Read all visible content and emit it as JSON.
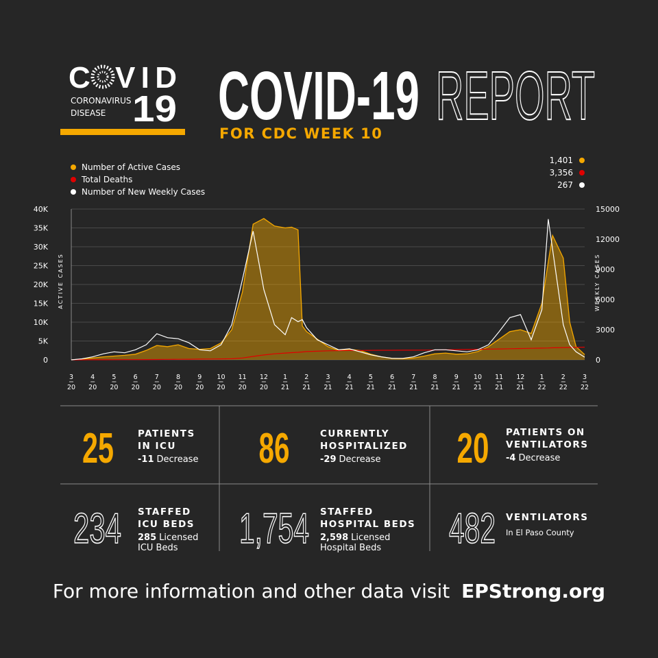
{
  "logo": {
    "text_before": "C",
    "text_after": "VID",
    "subtitle": [
      "CORONAVIRUS",
      "DISEASE"
    ],
    "number": "19"
  },
  "header": {
    "title": "COVID-19",
    "title_outline": "REPORT",
    "subtitle": "FOR CDC WEEK 10"
  },
  "chart_data": {
    "type": "area",
    "y_label": "ACTIVE CASES",
    "y2_label": "WEEKLY CASES",
    "xlim": [
      0,
      24
    ],
    "xticks": [
      {
        "value": 0,
        "label": "3",
        "sublabel": "20"
      },
      {
        "value": 1,
        "label": "4",
        "sublabel": "20"
      },
      {
        "value": 2,
        "label": "5",
        "sublabel": "20"
      },
      {
        "value": 3,
        "label": "6",
        "sublabel": "20"
      },
      {
        "value": 4,
        "label": "7",
        "sublabel": "20"
      },
      {
        "value": 5,
        "label": "8",
        "sublabel": "20"
      },
      {
        "value": 6,
        "label": "9",
        "sublabel": "20"
      },
      {
        "value": 7,
        "label": "10",
        "sublabel": "20"
      },
      {
        "value": 8,
        "label": "11",
        "sublabel": "20"
      },
      {
        "value": 9,
        "label": "12",
        "sublabel": "20"
      },
      {
        "value": 10,
        "label": "1",
        "sublabel": "21"
      },
      {
        "value": 11,
        "label": "2",
        "sublabel": "21"
      },
      {
        "value": 12,
        "label": "3",
        "sublabel": "21"
      },
      {
        "value": 13,
        "label": "4",
        "sublabel": "21"
      },
      {
        "value": 14,
        "label": "5",
        "sublabel": "21"
      },
      {
        "value": 15,
        "label": "6",
        "sublabel": "21"
      },
      {
        "value": 16,
        "label": "7",
        "sublabel": "21"
      },
      {
        "value": 17,
        "label": "8",
        "sublabel": "21"
      },
      {
        "value": 18,
        "label": "9",
        "sublabel": "21"
      },
      {
        "value": 19,
        "label": "10",
        "sublabel": "21"
      },
      {
        "value": 20,
        "label": "11",
        "sublabel": "21"
      },
      {
        "value": 21,
        "label": "12",
        "sublabel": "21"
      },
      {
        "value": 22,
        "label": "1",
        "sublabel": "22"
      },
      {
        "value": 23,
        "label": "2",
        "sublabel": "22"
      },
      {
        "value": 24,
        "label": "3",
        "sublabel": "22"
      }
    ],
    "ylim": [
      0,
      40000
    ],
    "yticks": [
      0,
      {
        "value": 5000,
        "label": "5K"
      },
      {
        "value": 10000,
        "label": "10K"
      },
      {
        "value": 15000,
        "label": "15K"
      },
      {
        "value": 20000,
        "label": "20K"
      },
      {
        "value": 25000,
        "label": "25K"
      },
      {
        "value": 30000,
        "label": "30K"
      },
      {
        "value": 35000,
        "label": "35K"
      },
      {
        "value": 40000,
        "label": "40K"
      }
    ],
    "y2lim": [
      0,
      15000
    ],
    "y2ticks": [
      0,
      3000,
      6000,
      9000,
      12000,
      15000
    ],
    "grid": true,
    "x": [
      0,
      0.5,
      1,
      1.5,
      2,
      2.5,
      3,
      3.5,
      4,
      4.5,
      5,
      5.5,
      6,
      6.5,
      7,
      7.5,
      8,
      8.5,
      9,
      9.5,
      10,
      10.3,
      10.6,
      10.8,
      11,
      11.5,
      12,
      12.5,
      13,
      13.5,
      14,
      14.5,
      15,
      15.5,
      16,
      16.5,
      17,
      17.5,
      18,
      18.5,
      19,
      19.5,
      20,
      20.5,
      21,
      21.5,
      22,
      22.3,
      22.5,
      23,
      23.3,
      23.6,
      24
    ],
    "series": [
      {
        "name": "Number of Active Cases",
        "color": "#f5a800",
        "type": "area",
        "axis": "y",
        "values": [
          0,
          200,
          500,
          800,
          1000,
          1200,
          1500,
          2500,
          3800,
          3500,
          4000,
          3000,
          2800,
          3000,
          4500,
          8000,
          18000,
          36000,
          37500,
          35500,
          35000,
          35200,
          34500,
          9000,
          7500,
          5500,
          3500,
          2500,
          2800,
          2500,
          1500,
          800,
          400,
          300,
          500,
          1000,
          1600,
          1800,
          1500,
          1600,
          2200,
          3500,
          5500,
          7500,
          8000,
          7000,
          15000,
          26000,
          33000,
          27000,
          10000,
          3500,
          1401
        ],
        "latest": {
          "value": 1401,
          "label": "1,401"
        }
      },
      {
        "name": "Total Deaths",
        "color": "#e00000",
        "type": "line",
        "axis": "y",
        "values": [
          0,
          0,
          10,
          20,
          40,
          50,
          60,
          80,
          100,
          120,
          150,
          170,
          200,
          220,
          250,
          300,
          500,
          900,
          1300,
          1600,
          1800,
          1900,
          2000,
          2100,
          2200,
          2300,
          2400,
          2450,
          2480,
          2500,
          2520,
          2540,
          2550,
          2560,
          2570,
          2580,
          2600,
          2650,
          2700,
          2750,
          2800,
          2850,
          2900,
          2950,
          3000,
          3050,
          3100,
          3150,
          3200,
          3250,
          3300,
          3330,
          3356
        ],
        "latest": {
          "value": 3356,
          "label": "3,356"
        }
      },
      {
        "name": "Number of New Weekly Cases",
        "color": "#ffffff",
        "type": "line",
        "axis": "y2",
        "values": [
          0,
          100,
          300,
          600,
          800,
          700,
          1000,
          1500,
          2600,
          2200,
          2100,
          1700,
          1000,
          900,
          1500,
          3500,
          8000,
          12800,
          7000,
          3500,
          2500,
          4200,
          3800,
          4000,
          3200,
          2000,
          1500,
          1000,
          1100,
          800,
          500,
          300,
          150,
          150,
          300,
          700,
          1000,
          1000,
          900,
          800,
          1000,
          1500,
          2800,
          4200,
          4500,
          2000,
          5000,
          14000,
          11000,
          3500,
          1500,
          800,
          267
        ],
        "latest": {
          "value": 267,
          "label": "267"
        }
      }
    ]
  },
  "stats": [
    {
      "number": "25",
      "title": [
        "PATIENTS",
        "IN ICU"
      ],
      "note_bold": "-11",
      "note": [
        "Decrease"
      ]
    },
    {
      "number": "86",
      "title": [
        "CURRENTLY",
        "HOSPITALIZED"
      ],
      "note_bold": "-29",
      "note": [
        "Decrease"
      ]
    },
    {
      "number": "20",
      "title": [
        "PATIENTS ON",
        "VENTILATORS"
      ],
      "note_bold": "-4",
      "note": [
        "Decrease"
      ]
    },
    {
      "number": "234",
      "title": [
        "STAFFED",
        "ICU BEDS"
      ],
      "note_bold": "285",
      "note": [
        "Licensed",
        "ICU Beds"
      ]
    },
    {
      "number": "1,754",
      "title": [
        "STAFFED",
        "HOSPITAL BEDS"
      ],
      "note_bold": "2,598",
      "note": [
        "Licensed",
        "Hospital Beds"
      ]
    },
    {
      "number": "482",
      "title": [
        "VENTILATORS"
      ],
      "note": [
        "In El Paso County"
      ]
    }
  ],
  "footer": {
    "text": "For more information and other data visit",
    "link": "EPStrong.org"
  }
}
